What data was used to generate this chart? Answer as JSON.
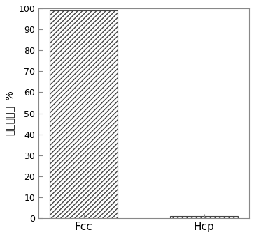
{
  "categories": [
    "Fcc",
    "Hcp"
  ],
  "values": [
    99.0,
    1.0
  ],
  "bar_color": "#ffffff",
  "bar_edgecolor": "#444444",
  "hatch": "/////",
  "ylabel": "含量百分比  %",
  "ylim": [
    0,
    100
  ],
  "yticks": [
    0,
    10,
    20,
    30,
    40,
    50,
    60,
    70,
    80,
    90,
    100
  ],
  "bar_width": 0.45,
  "x_positions": [
    0.3,
    1.1
  ],
  "xlim": [
    0.0,
    1.4
  ],
  "figsize": [
    3.63,
    3.4
  ],
  "dpi": 100,
  "tick_fontsize": 9,
  "xlabel_fontsize": 11,
  "ylabel_fontsize": 10,
  "background_color": "#ffffff",
  "spine_color": "#888888"
}
